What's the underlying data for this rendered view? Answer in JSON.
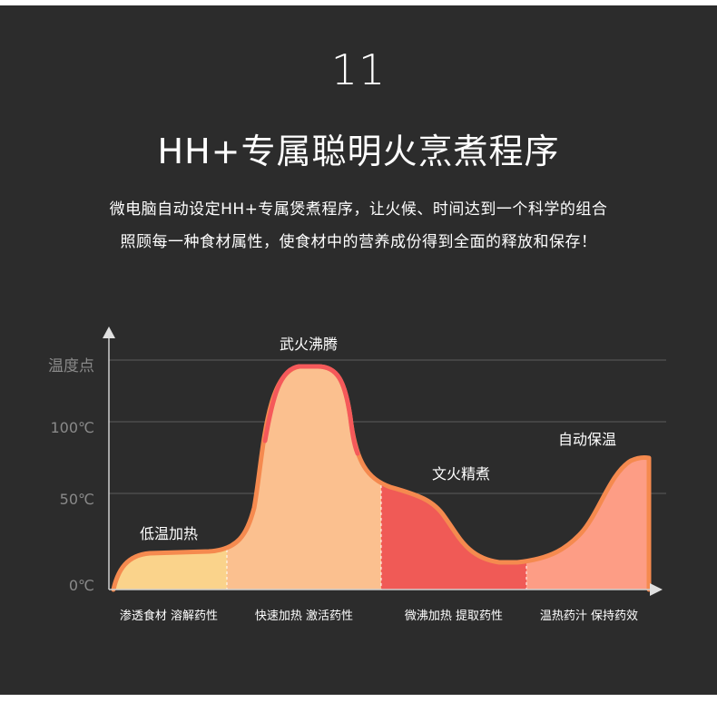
{
  "header": {
    "number": "11",
    "title": "HH+专属聪明火烹煮程序",
    "desc_line1": "微电脑自动设定HH+专属煲煮程序，让火候、时间达到一个科学的组合",
    "desc_line2": "照顾每一种食材属性，使食材中的营养成份得到全面的释放和保存！"
  },
  "chart": {
    "y_axis_label": "温度点",
    "y_ticks": [
      "100℃",
      "50℃",
      "0℃"
    ],
    "phase_labels": [
      "低温加热",
      "武火沸腾",
      "文火精煮",
      "自动保温"
    ],
    "bottom_labels": [
      "渗透食材 溶解药性",
      "快速加热 激活药性",
      "微沸加热 提取药性",
      "温热药汁 保持药效"
    ]
  },
  "colors": {
    "background": "#2c2c2c",
    "phase1_fill": "#fad38b",
    "phase2_fill": "#fbc08f",
    "phase3_fill": "#f05a56",
    "phase4_fill": "#fd9d85",
    "curve_stroke": "#f58a4f",
    "peak_stroke": "#f5595a"
  }
}
